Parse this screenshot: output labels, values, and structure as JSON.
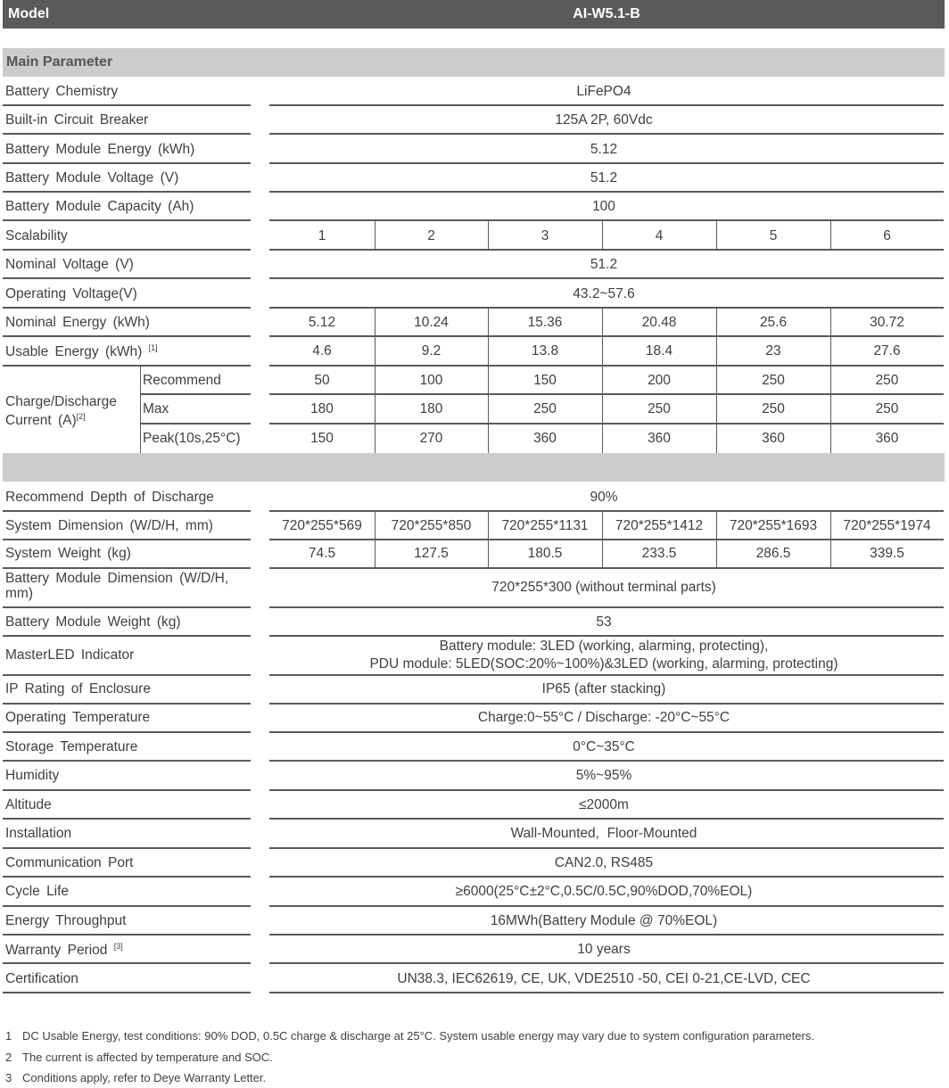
{
  "header": {
    "label": "Model",
    "value": "AI-W5.1-B"
  },
  "main_section": {
    "title": "Main Parameter"
  },
  "rows_a": [
    {
      "label": "Battery Chemistry",
      "value": "LiFePO4"
    },
    {
      "label": "Built-in Circuit Breaker",
      "value": "125A 2P, 60Vdc"
    },
    {
      "label": "Battery Module Energy (kWh)",
      "value": "5.12"
    },
    {
      "label": "Battery Module Voltage (V)",
      "value": "51.2"
    },
    {
      "label": "Battery Module Capacity (Ah)",
      "value": "100"
    }
  ],
  "scalability": {
    "label": "Scalability",
    "values": [
      "1",
      "2",
      "3",
      "4",
      "5",
      "6"
    ]
  },
  "rows_b": [
    {
      "label": "Nominal Voltage (V)",
      "value": "51.2"
    },
    {
      "label": "Operating Voltage(V)",
      "value": "43.2~57.6"
    }
  ],
  "nominal_energy": {
    "label": "Nominal Energy (kWh)",
    "values": [
      "5.12",
      "10.24",
      "15.36",
      "20.48",
      "25.6",
      "30.72"
    ]
  },
  "usable_energy": {
    "label": "Usable Energy (kWh)",
    "note": "[1]",
    "values": [
      "4.6",
      "9.2",
      "13.8",
      "18.4",
      "23",
      "27.6"
    ]
  },
  "charge_current": {
    "label": "Charge/Discharge Current (A)",
    "note": "[2]",
    "subrows": [
      {
        "label": "Recommend",
        "values": [
          "50",
          "100",
          "150",
          "200",
          "250",
          "250"
        ]
      },
      {
        "label": "Max",
        "values": [
          "180",
          "180",
          "250",
          "250",
          "250",
          "250"
        ]
      },
      {
        "label": "Peak(10s,25°C)",
        "values": [
          "150",
          "270",
          "360",
          "360",
          "360",
          "360"
        ]
      }
    ]
  },
  "depth": {
    "label": "Recommend Depth of Discharge",
    "value": "90%"
  },
  "system_dimension": {
    "label": "System Dimension (W/D/H, mm)",
    "values": [
      "720*255*569",
      "720*255*850",
      "720*255*1131",
      "720*255*1412",
      "720*255*1693",
      "720*255*1974"
    ]
  },
  "system_weight": {
    "label": "System Weight (kg)",
    "values": [
      "74.5",
      "127.5",
      "180.5",
      "233.5",
      "286.5",
      "339.5"
    ]
  },
  "module_dimension": {
    "label": "Battery Module Dimension (W/D/H, mm)",
    "value": "720*255*300 (without terminal parts)"
  },
  "module_weight": {
    "label": "Battery Module Weight (kg)",
    "value": "53"
  },
  "indicator": {
    "label": "MasterLED Indicator",
    "line1": "Battery module: 3LED (working, alarming, protecting),",
    "line2": "PDU module: 5LED(SOC:20%~100%)&3LED (working, alarming, protecting)"
  },
  "rows_c": [
    {
      "label": "IP Rating of Enclosure",
      "value": "IP65 (after stacking)"
    },
    {
      "label": "Operating Temperature",
      "value": "Charge:0~55°C / Discharge: -20°C~55°C"
    },
    {
      "label": "Storage Temperature",
      "value": "0°C~35°C"
    },
    {
      "label": "Humidity",
      "value": "5%~95%"
    },
    {
      "label": "Altitude",
      "value": "≤2000m"
    },
    {
      "label": "Installation",
      "value": "Wall-Mounted,  Floor-Mounted"
    },
    {
      "label": "Communication Port",
      "value": "CAN2.0, RS485"
    },
    {
      "label": "Cycle Life",
      "value": "≥6000(25°C±2°C,0.5C/0.5C,90%DOD,70%EOL)"
    },
    {
      "label": "Energy Throughput",
      "value": "16MWh(Battery Module @ 70%EOL)"
    },
    {
      "label": "Warranty Period",
      "value": "10 years",
      "note": "[3]"
    },
    {
      "label": "Certification",
      "value": "UN38.3, IEC62619, CE, UK, VDE2510 -50, CEI 0-21,CE-LVD, CEC"
    }
  ],
  "footnotes": [
    {
      "num": "1",
      "text": "DC Usable Energy, test conditions: 90% DOD, 0.5C charge & discharge at 25°C. System usable energy may vary due to system configuration parameters."
    },
    {
      "num": "2",
      "text": "The current is affected by temperature and SOC."
    },
    {
      "num": "3",
      "text": "Conditions apply, refer to Deye Warranty Letter."
    }
  ]
}
